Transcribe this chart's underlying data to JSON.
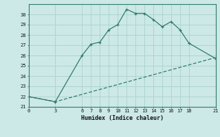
{
  "xlabel": "Humidex (Indice chaleur)",
  "ylabel": "",
  "bg_color": "#cce9e7",
  "line_color": "#2d7a6a",
  "grid_color": "#afd4d0",
  "line1_x": [
    0,
    3,
    6,
    7,
    8,
    9,
    10,
    11,
    12,
    13,
    14,
    15,
    16,
    17,
    18,
    21
  ],
  "line1_y": [
    22.0,
    21.5,
    26.0,
    27.1,
    27.3,
    28.5,
    29.0,
    30.5,
    30.1,
    30.1,
    29.5,
    28.8,
    29.3,
    28.5,
    27.2,
    25.7
  ],
  "line2_x": [
    0,
    3,
    21
  ],
  "line2_y": [
    22.0,
    21.5,
    25.8
  ],
  "xlim": [
    0,
    21
  ],
  "ylim": [
    21,
    31
  ],
  "yticks": [
    21,
    22,
    23,
    24,
    25,
    26,
    27,
    28,
    29,
    30
  ],
  "xticks": [
    0,
    3,
    6,
    7,
    8,
    9,
    10,
    11,
    12,
    13,
    14,
    15,
    16,
    17,
    18,
    21
  ],
  "marker": "+"
}
